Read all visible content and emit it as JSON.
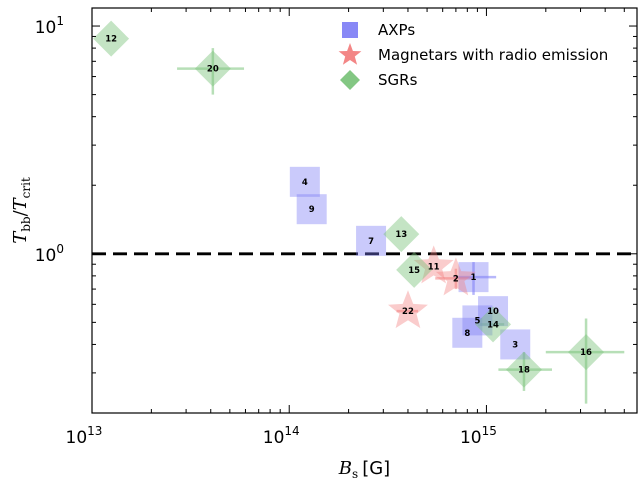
{
  "chart_data": {
    "type": "scatter",
    "xlabel": "B_s [G]",
    "ylabel": "T_bb/T_crit",
    "x_scale": "log",
    "y_scale": "log",
    "xlim": [
      10000000000000.0,
      5800000000000000.0
    ],
    "ylim": [
      0.2,
      12
    ],
    "x_ticks": [
      {
        "value": 10000000000000.0,
        "base": "10",
        "exp": "13"
      },
      {
        "value": 100000000000000.0,
        "base": "10",
        "exp": "14"
      },
      {
        "value": 1000000000000000.0,
        "base": "10",
        "exp": "15"
      }
    ],
    "y_ticks": [
      {
        "value": 1,
        "base": "10",
        "exp": "0"
      },
      {
        "value": 10,
        "base": "10",
        "exp": "1"
      }
    ],
    "reference_line": {
      "y": 1,
      "style": "dashed",
      "color": "#000000"
    },
    "legend": {
      "position": "top-right"
    },
    "series": [
      {
        "name": "AXPs",
        "marker": "square",
        "color": "#7b7bf5",
        "points": [
          {
            "label": "4",
            "x": 120000000000000.0,
            "y": 2.07
          },
          {
            "label": "9",
            "x": 130000000000000.0,
            "y": 1.57
          },
          {
            "label": "7",
            "x": 260000000000000.0,
            "y": 1.14
          },
          {
            "label": "1",
            "x": 860000000000000.0,
            "y": 0.79,
            "xerr": [
              180000000000000.0,
              260000000000000.0
            ],
            "yerr": [
              0.13,
              0.13
            ]
          },
          {
            "label": "10",
            "x": 1080000000000000.0,
            "y": 0.56
          },
          {
            "label": "5",
            "x": 900000000000000.0,
            "y": 0.51
          },
          {
            "label": "8",
            "x": 800000000000000.0,
            "y": 0.45
          },
          {
            "label": "3",
            "x": 1400000000000000.0,
            "y": 0.4
          }
        ]
      },
      {
        "name": "Magnetars with radio emission",
        "marker": "star",
        "color": "#f27f7f",
        "points": [
          {
            "label": "11",
            "x": 540000000000000.0,
            "y": 0.88
          },
          {
            "label": "2",
            "x": 700000000000000.0,
            "y": 0.78,
            "xerr": [
              150000000000000.0,
              150000000000000.0
            ],
            "yerr": [
              0.08,
              0.08
            ]
          },
          {
            "label": "22",
            "x": 400000000000000.0,
            "y": 0.56,
            "xerr": [
              50000000000000.0,
              50000000000000.0
            ]
          }
        ]
      },
      {
        "name": "SGRs",
        "marker": "diamond",
        "color": "#7cc47c",
        "points": [
          {
            "label": "12",
            "x": 12500000000000.0,
            "y": 8.8
          },
          {
            "label": "20",
            "x": 41000000000000.0,
            "y": 6.5,
            "xerr": [
              14000000000000.0,
              18000000000000.0
            ],
            "yerr": [
              1.5,
              1.5
            ]
          },
          {
            "label": "13",
            "x": 370000000000000.0,
            "y": 1.22
          },
          {
            "label": "15",
            "x": 430000000000000.0,
            "y": 0.85
          },
          {
            "label": "14",
            "x": 1080000000000000.0,
            "y": 0.49,
            "xerr": [
              150000000000000.0,
              150000000000000.0
            ]
          },
          {
            "label": "18",
            "x": 1550000000000000.0,
            "y": 0.31,
            "xerr": [
              400000000000000.0,
              600000000000000.0
            ],
            "yerr": [
              0.06,
              0.06
            ]
          },
          {
            "label": "16",
            "x": 3200000000000000.0,
            "y": 0.37,
            "xerr": [
              1200000000000000.0,
              1800000000000000.0
            ],
            "yerr": [
              0.15,
              0.15
            ]
          }
        ]
      }
    ]
  },
  "axes": {
    "xlabel_main": "B",
    "xlabel_sub": "s",
    "xlabel_unit": "[G]",
    "ylabel_num": "T",
    "ylabel_num_sub": "bb",
    "ylabel_den": "T",
    "ylabel_den_sub": "crit"
  }
}
